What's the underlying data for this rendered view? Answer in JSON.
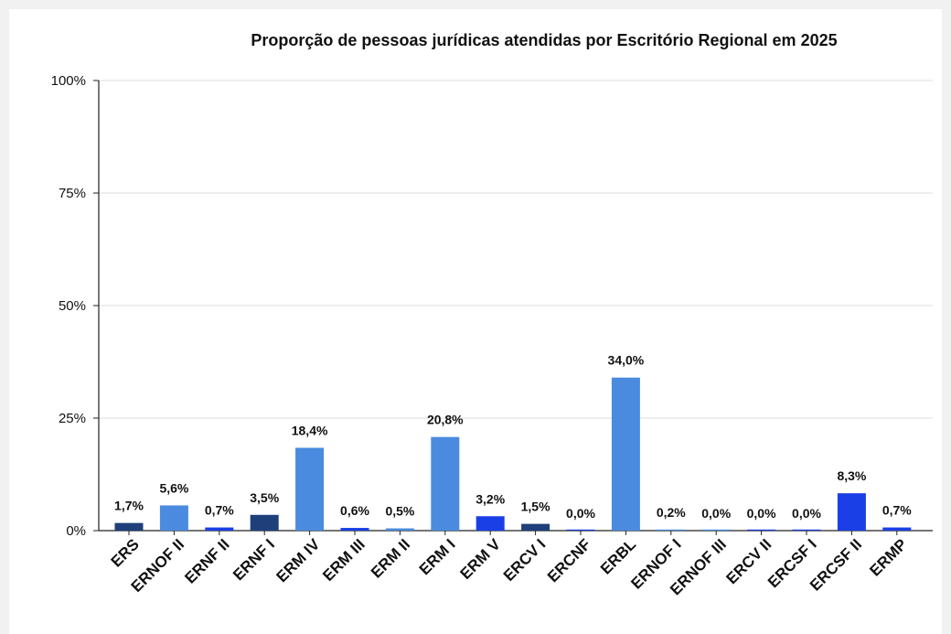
{
  "chart_data": {
    "type": "bar",
    "title": "Proporção de pessoas jurídicas atendidas por Escritório Regional em 2025",
    "xlabel": "",
    "ylabel": "",
    "ylim": [
      0,
      100
    ],
    "yticks": [
      0,
      25,
      50,
      75,
      100
    ],
    "ytick_labels": [
      "0%",
      "25%",
      "50%",
      "75%",
      "100%"
    ],
    "grid": true,
    "legend": "none",
    "categories": [
      "ERS",
      "ERNOF II",
      "ERNF II",
      "ERNF I",
      "ERM IV",
      "ERM III",
      "ERM II",
      "ERM I",
      "ERM V",
      "ERCV I",
      "ERCNF",
      "ERBL",
      "ERNOF I",
      "ERNOF III",
      "ERCV II",
      "ERCSF I",
      "ERCSF II",
      "ERMP"
    ],
    "values": [
      1.7,
      5.6,
      0.7,
      3.5,
      18.4,
      0.6,
      0.5,
      20.8,
      3.2,
      1.5,
      0.0,
      34.0,
      0.2,
      0.0,
      0.0,
      0.0,
      8.3,
      0.7
    ],
    "data_labels": [
      "1,7%",
      "5,6%",
      "0,7%",
      "3,5%",
      "18,4%",
      "0,6%",
      "0,5%",
      "20,8%",
      "3,2%",
      "1,5%",
      "0,0%",
      "34,0%",
      "0,2%",
      "0,0%",
      "0,0%",
      "0,0%",
      "8,3%",
      "0,7%"
    ],
    "colors": [
      "#1f3f7a",
      "#4a8be0",
      "#1a3fe6",
      "#1f3f7a",
      "#4a8be0",
      "#1a3fe6",
      "#4a8be0",
      "#4a8be0",
      "#1a3fe6",
      "#1f3f7a",
      "#1a3fe6",
      "#4a8be0",
      "#4a8be0",
      "#4a8be0",
      "#1a3fe6",
      "#1a3fe6",
      "#1a3fe6",
      "#1a3fe6"
    ]
  }
}
